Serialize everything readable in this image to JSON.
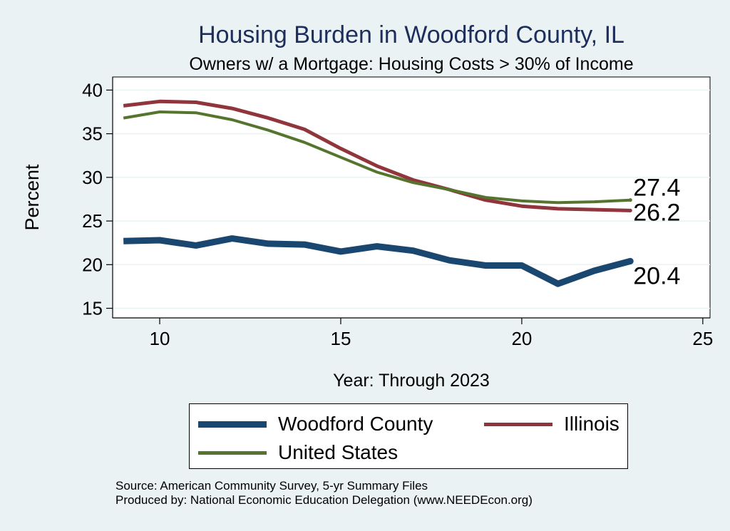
{
  "chart_data": {
    "type": "line",
    "title": "Housing Burden in Woodford County, IL",
    "subtitle": "Owners w/ a Mortgage: Housing Costs > 30% of Income",
    "xlabel": "Year: Through 2023",
    "ylabel": "Percent",
    "xlim": [
      8.7,
      25.2
    ],
    "ylim": [
      13.9,
      41.5
    ],
    "xticks": [
      10,
      15,
      20,
      25
    ],
    "yticks": [
      15,
      20,
      25,
      30,
      35,
      40
    ],
    "grid": "horizontal",
    "legend_position": "bottom",
    "x": [
      9,
      10,
      11,
      12,
      13,
      14,
      15,
      16,
      17,
      18,
      19,
      20,
      21,
      22,
      23
    ],
    "series": [
      {
        "name": "Woodford County",
        "color": "#1a476f",
        "values": [
          22.7,
          22.8,
          22.2,
          23.0,
          22.4,
          22.3,
          21.5,
          22.1,
          21.6,
          20.5,
          19.9,
          19.9,
          17.8,
          19.3,
          20.4
        ],
        "end_label": "20.4"
      },
      {
        "name": "Illinois",
        "color": "#90353b",
        "values": [
          38.2,
          38.7,
          38.6,
          37.9,
          36.8,
          35.5,
          33.3,
          31.3,
          29.7,
          28.6,
          27.4,
          26.7,
          26.4,
          26.3,
          26.2
        ],
        "end_label": "26.2"
      },
      {
        "name": "United States",
        "color": "#55752f",
        "values": [
          36.8,
          37.5,
          37.4,
          36.6,
          35.4,
          34.0,
          32.3,
          30.6,
          29.4,
          28.6,
          27.7,
          27.3,
          27.1,
          27.2,
          27.4
        ],
        "end_label": "27.4"
      }
    ]
  },
  "legend": {
    "woodford": "Woodford County",
    "illinois": "Illinois",
    "us": "United States"
  },
  "source": {
    "line1": "Source: American Community Survey, 5-yr Summary Files",
    "line2": "Produced by: National Economic Education Delegation (www.NEEDEcon.org)"
  }
}
